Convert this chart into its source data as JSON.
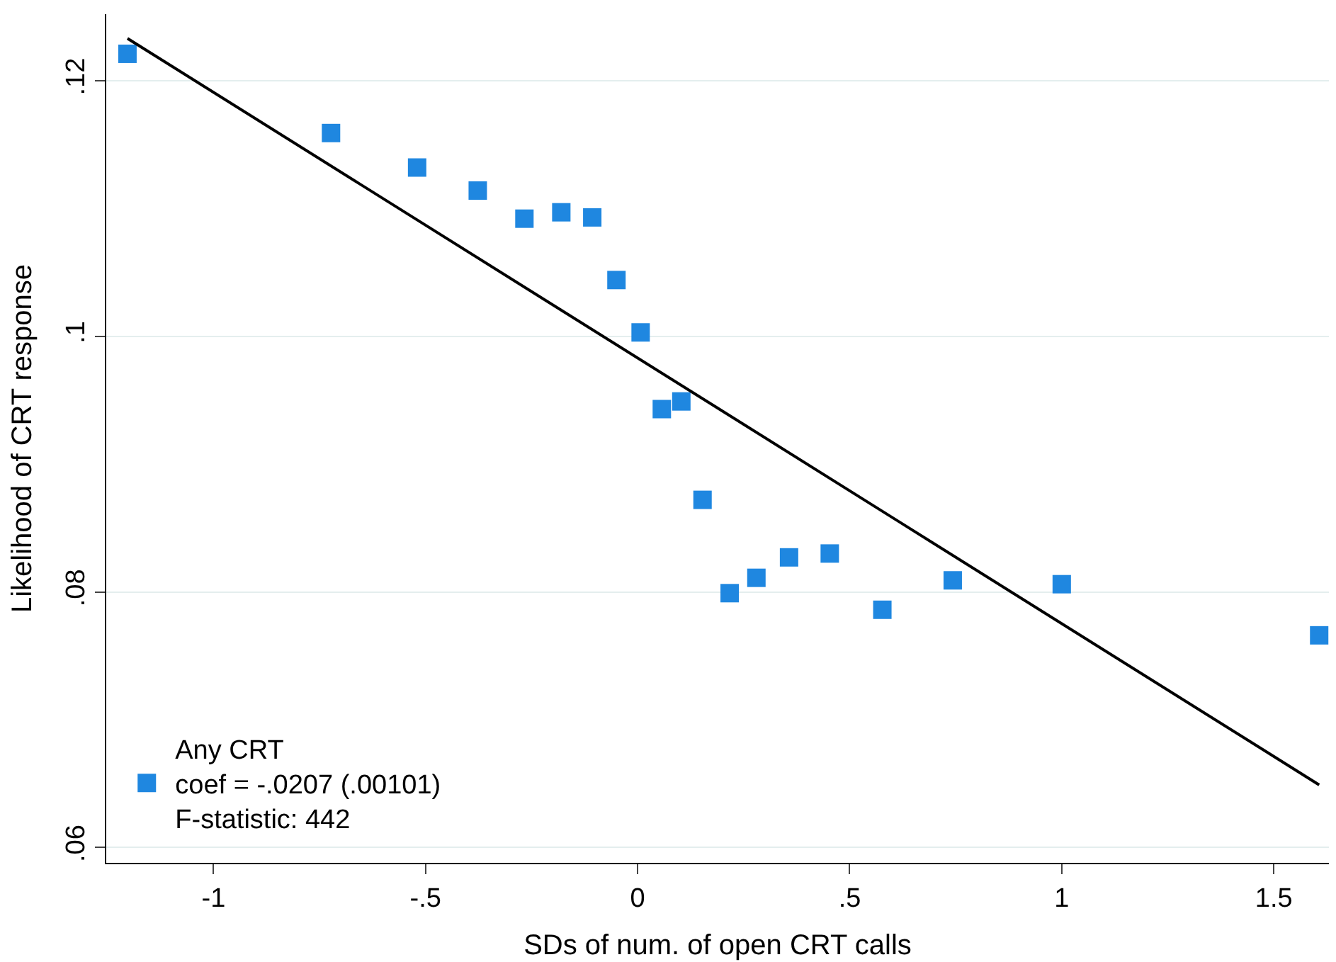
{
  "chart_data": {
    "type": "scatter",
    "xlabel": "SDs of num. of open CRT calls",
    "ylabel": "Likelihood of CRT response",
    "xlim": [
      -1.253,
      1.63
    ],
    "xticks": [
      -1,
      {
        "value": -0.5,
        "label": "-.5"
      },
      0,
      {
        "value": 0.5,
        "label": ".5"
      },
      1,
      1.5
    ],
    "ylim": [
      0.0588,
      0.1252
    ],
    "yticks": [
      {
        "value": 0.06,
        "label": ".06"
      },
      {
        "value": 0.08,
        "label": ".08"
      },
      {
        "value": 0.1,
        "label": ".1"
      },
      {
        "value": 0.12,
        "label": ".12"
      }
    ],
    "grid": "y",
    "legend": "bottom left",
    "series": [
      {
        "name": "Any CRT\ncoef = -.0207 (.00101)\nF-statistic: 442",
        "color": "#1f87e0",
        "marker": "square",
        "x": [
          -1.203,
          -0.723,
          -0.52,
          -0.377,
          -0.267,
          -0.18,
          -0.107,
          -0.05,
          0.007,
          0.057,
          0.103,
          0.153,
          0.217,
          0.28,
          0.357,
          0.453,
          0.577,
          0.743,
          1.0,
          1.607
        ],
        "values": [
          0.1221,
          0.1159,
          0.1132,
          0.1114,
          0.1092,
          0.1097,
          0.1093,
          0.1044,
          0.1003,
          0.0943,
          0.0949,
          0.0872,
          0.0799,
          0.0811,
          0.0827,
          0.083,
          0.0786,
          0.0809,
          0.0806,
          0.0766
        ]
      },
      {
        "type": "line",
        "color": "#000000",
        "line_style": "solid",
        "marker": "none",
        "x": [
          -1.203,
          1.607
        ],
        "values": [
          0.1233,
          0.0649
        ]
      }
    ]
  }
}
